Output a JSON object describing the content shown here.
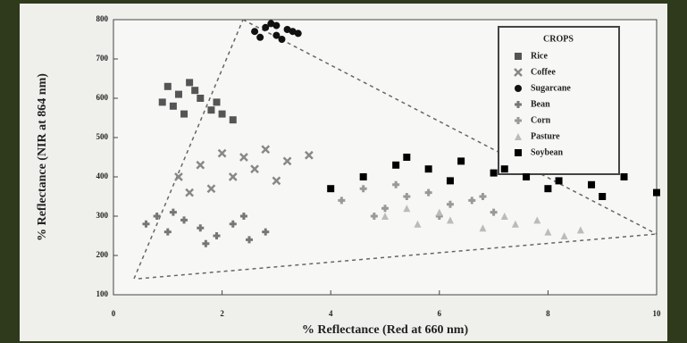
{
  "chart_data": {
    "type": "scatter",
    "xlabel": "% Reflectance (Red at 660 nm)",
    "ylabel": "% Reflectance (NIR at 864 nm)",
    "legend_title": "CROPS",
    "legend": "upper right",
    "xlim": [
      0,
      10
    ],
    "xticks": [
      0,
      2,
      4,
      6,
      8,
      10
    ],
    "ylim": [
      100,
      800
    ],
    "yticks": [
      100,
      200,
      300,
      400,
      500,
      600,
      700,
      800
    ],
    "series": [
      {
        "name": "Rice",
        "color": "#555555",
        "marker": "square",
        "x": [
          1.0,
          1.2,
          1.4,
          1.1,
          1.6,
          1.8,
          2.0,
          1.3,
          1.5,
          2.2,
          1.9,
          0.9
        ],
        "y": [
          630,
          610,
          640,
          580,
          600,
          570,
          560,
          560,
          620,
          545,
          590,
          590
        ]
      },
      {
        "name": "Coffee",
        "color": "#888888",
        "marker": "x",
        "x": [
          1.2,
          1.6,
          2.0,
          2.4,
          2.8,
          3.2,
          3.6,
          2.2,
          1.8,
          2.6,
          3.0,
          1.4
        ],
        "y": [
          400,
          430,
          460,
          450,
          470,
          440,
          455,
          400,
          370,
          420,
          390,
          360
        ]
      },
      {
        "name": "Sugarcane",
        "color": "#111111",
        "marker": "circle",
        "x": [
          2.6,
          2.8,
          3.0,
          3.2,
          3.4,
          2.9,
          3.1,
          2.7,
          3.3,
          3.0
        ],
        "y": [
          770,
          780,
          760,
          775,
          765,
          790,
          750,
          755,
          770,
          785
        ]
      },
      {
        "name": "Bean",
        "color": "#777777",
        "marker": "plus",
        "x": [
          0.6,
          0.8,
          1.0,
          1.3,
          1.6,
          1.9,
          2.2,
          2.5,
          2.8,
          1.1,
          1.7,
          2.4
        ],
        "y": [
          280,
          300,
          260,
          290,
          270,
          250,
          280,
          240,
          260,
          310,
          230,
          300
        ]
      },
      {
        "name": "Corn",
        "color": "#999999",
        "marker": "plus",
        "x": [
          4.2,
          4.6,
          5.0,
          5.4,
          5.8,
          6.2,
          6.6,
          7.0,
          5.2,
          6.0,
          4.8,
          6.8
        ],
        "y": [
          340,
          370,
          320,
          350,
          360,
          330,
          340,
          310,
          380,
          300,
          300,
          350
        ]
      },
      {
        "name": "Pasture",
        "color": "#bbbbbb",
        "marker": "triangle",
        "x": [
          5.0,
          5.6,
          6.2,
          6.8,
          7.4,
          8.0,
          8.6,
          6.0,
          7.2,
          8.3,
          5.4,
          7.8
        ],
        "y": [
          300,
          280,
          290,
          270,
          280,
          260,
          265,
          310,
          300,
          250,
          320,
          290
        ]
      },
      {
        "name": "Soybean",
        "color": "#000000",
        "marker": "square",
        "x": [
          4.0,
          4.6,
          5.2,
          5.8,
          6.4,
          7.0,
          7.6,
          8.2,
          8.8,
          9.4,
          10.0,
          5.4,
          6.2,
          7.2,
          8.0,
          9.0
        ],
        "y": [
          370,
          400,
          430,
          420,
          440,
          410,
          400,
          390,
          380,
          400,
          360,
          450,
          390,
          420,
          370,
          350
        ]
      }
    ]
  }
}
